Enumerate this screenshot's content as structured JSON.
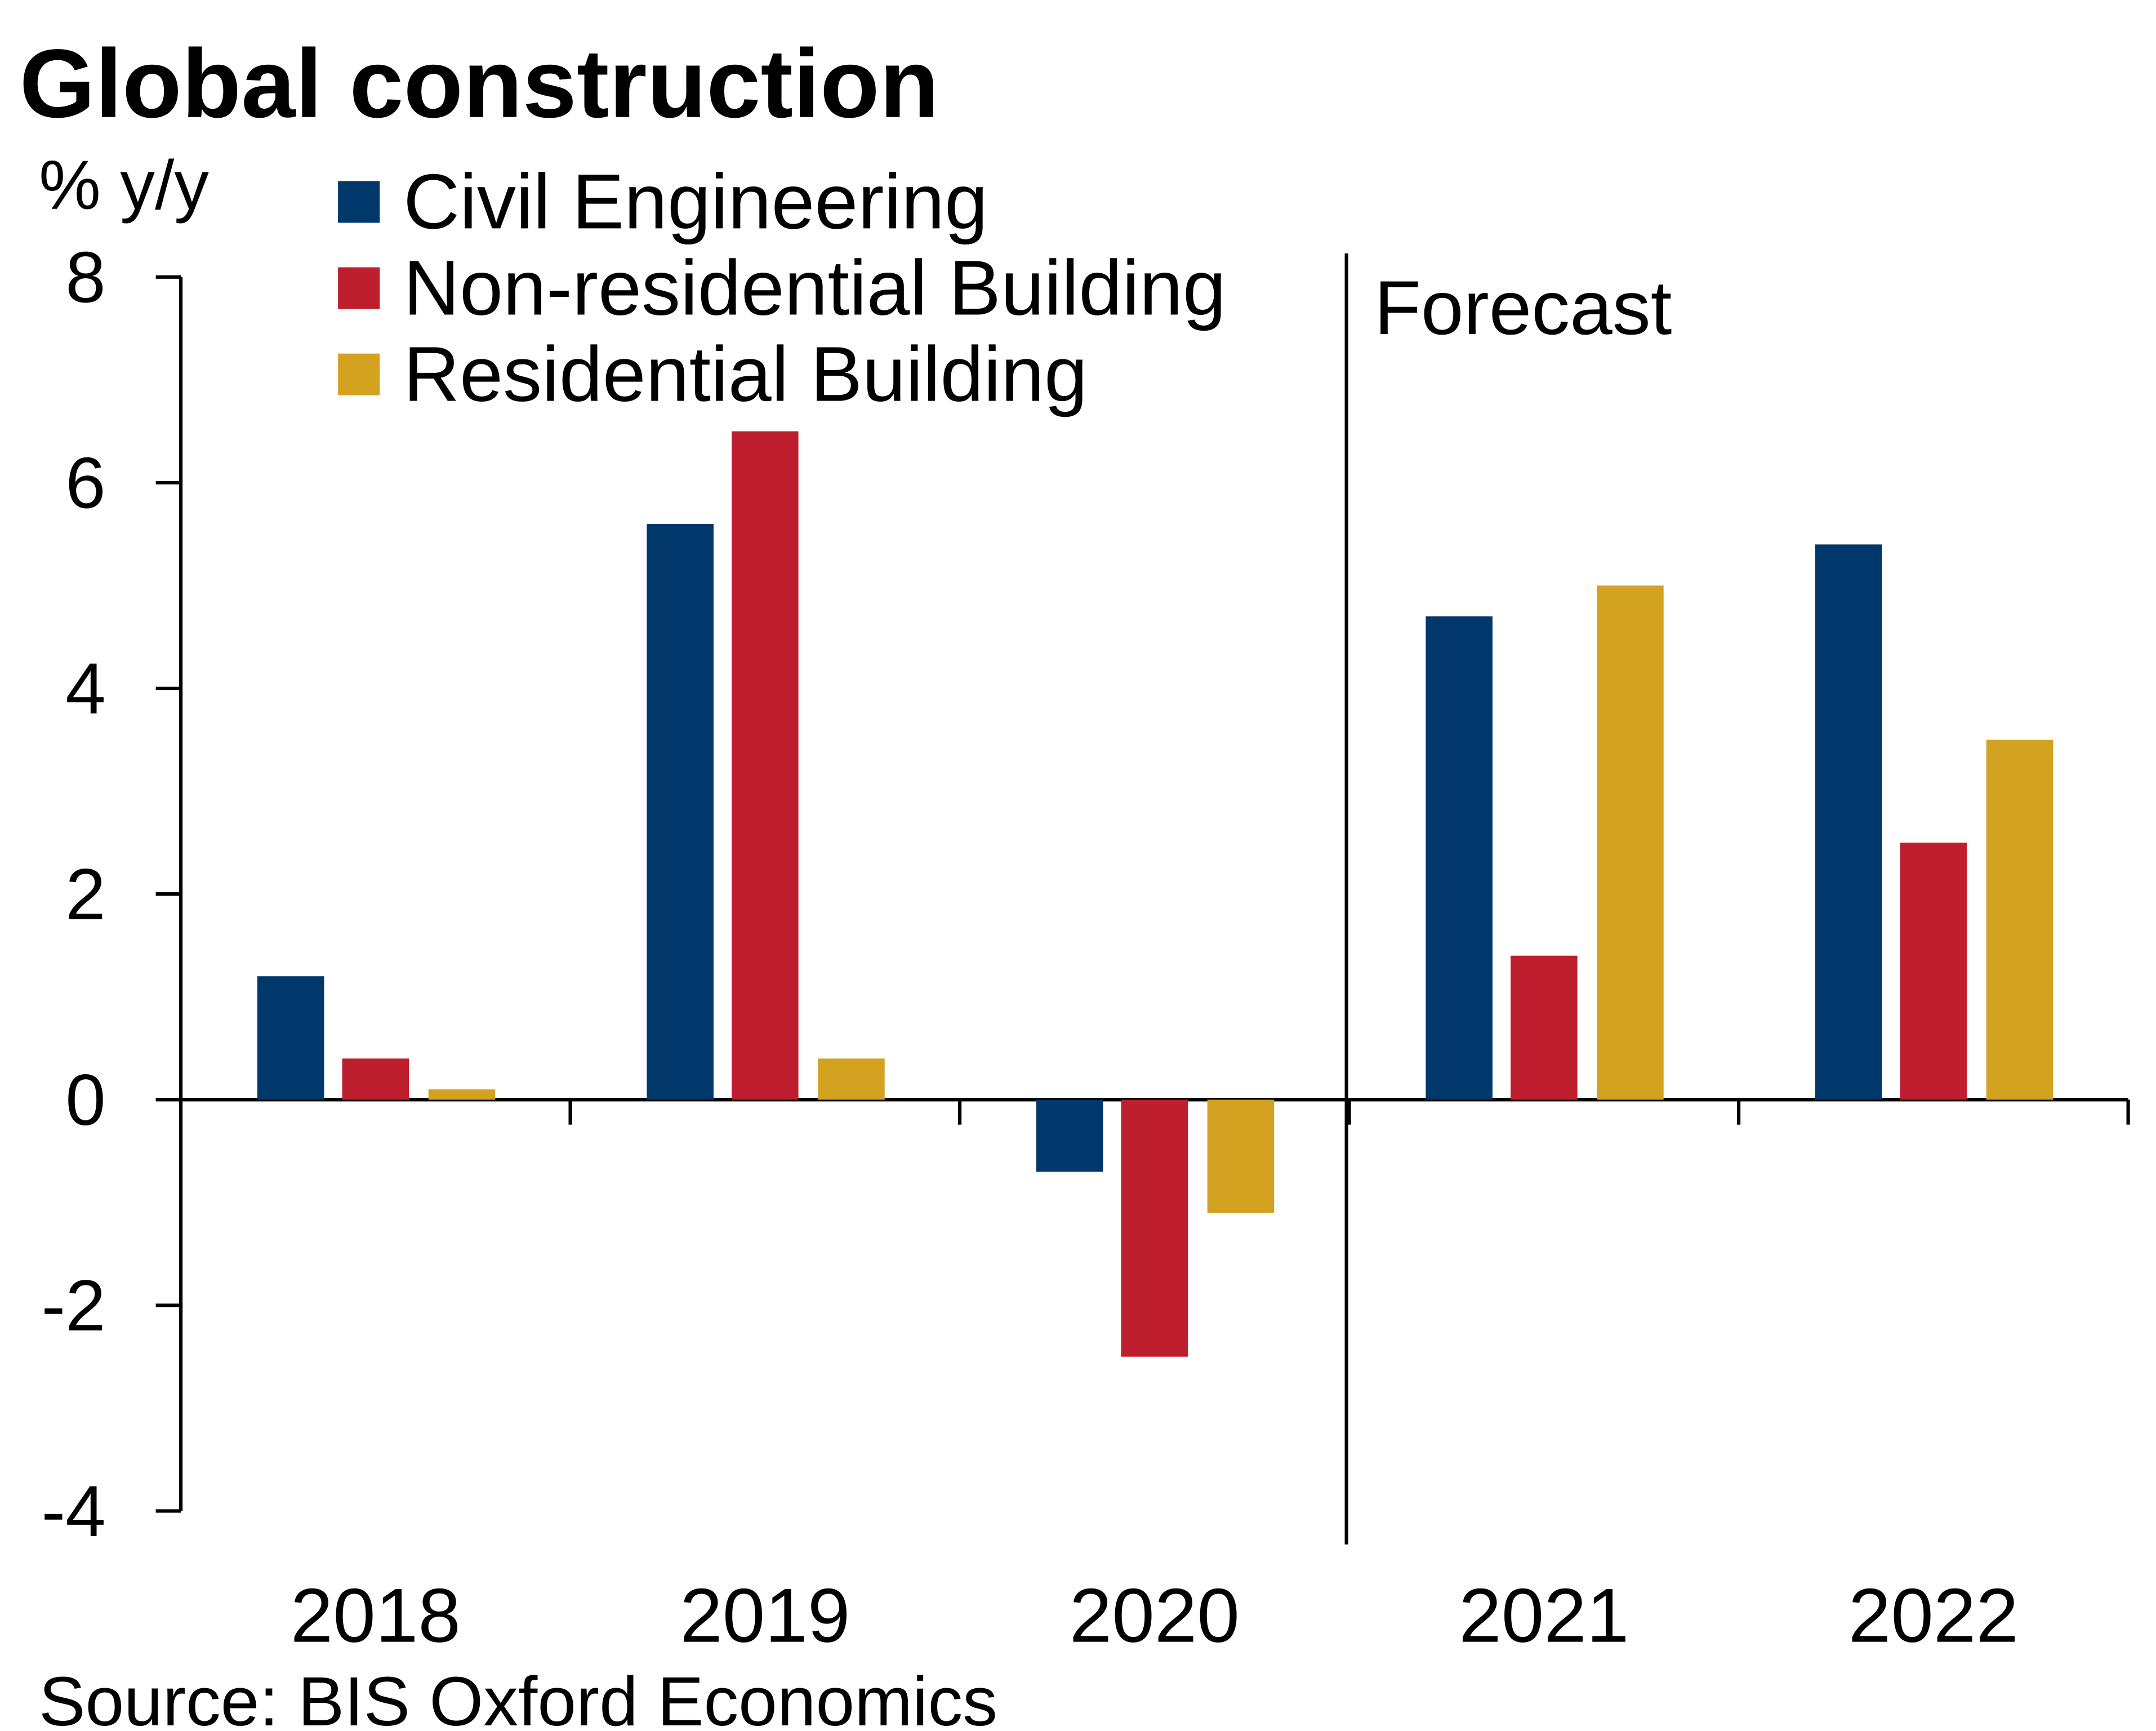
{
  "chart_data": {
    "type": "bar",
    "title": "Global construction",
    "ylabel": "% y/y",
    "xlabel": "",
    "ylim": [
      -4,
      8
    ],
    "yticks": [
      "-4",
      "-2",
      "0",
      "2",
      "4",
      "6",
      "8"
    ],
    "categories": [
      "2018",
      "2019",
      "2020",
      "2021",
      "2022"
    ],
    "series": [
      {
        "name": "Civil Engineering",
        "color": "#00386B",
        "values": [
          1.2,
          5.6,
          -0.7,
          4.7,
          5.4
        ]
      },
      {
        "name": "Non-residential Building",
        "color": "#BE1E2D",
        "values": [
          0.4,
          6.5,
          -2.5,
          1.4,
          2.5
        ]
      },
      {
        "name": "Residential Building",
        "color": "#D4A221",
        "values": [
          0.1,
          0.4,
          -1.1,
          5.0,
          3.5
        ]
      }
    ],
    "annotation": "Forecast",
    "legend": "top-left",
    "grid": false,
    "source": "Source: BIS Oxford Economics"
  }
}
